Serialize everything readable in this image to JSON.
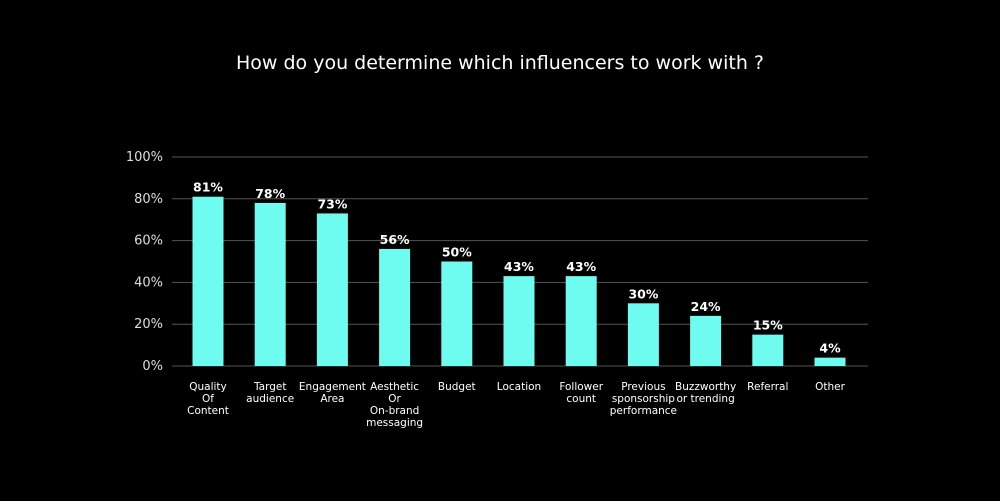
{
  "chart_data": {
    "type": "bar",
    "title": "How do you determine which influencers to work with ?",
    "categories": [
      [
        "Quality",
        "Of",
        "Content"
      ],
      [
        "Target",
        "audience"
      ],
      [
        "Engagement",
        "Area"
      ],
      [
        "Aesthetic",
        "Or",
        "On-brand",
        "messaging"
      ],
      [
        "Budget"
      ],
      [
        "Location"
      ],
      [
        "Follower",
        "count"
      ],
      [
        "Previous",
        "sponsorship",
        "performance"
      ],
      [
        "Buzzworthy",
        "or trending"
      ],
      [
        "Referral"
      ],
      [
        "Other"
      ]
    ],
    "values": [
      81,
      78,
      73,
      56,
      50,
      43,
      43,
      30,
      24,
      15,
      4
    ],
    "data_labels": [
      "81%",
      "78%",
      "73%",
      "56%",
      "50%",
      "43%",
      "43%",
      "30%",
      "24%",
      "15%",
      "4%"
    ],
    "ylim": [
      0,
      100
    ],
    "yticks": [
      "0%",
      "20%",
      "40%",
      "60%",
      "80%",
      "100%"
    ],
    "grid": true,
    "legend": "none",
    "colors": {
      "bar": "#6efcf0",
      "background": "#000000",
      "grid": "#555555",
      "text": "#ffffff"
    }
  }
}
